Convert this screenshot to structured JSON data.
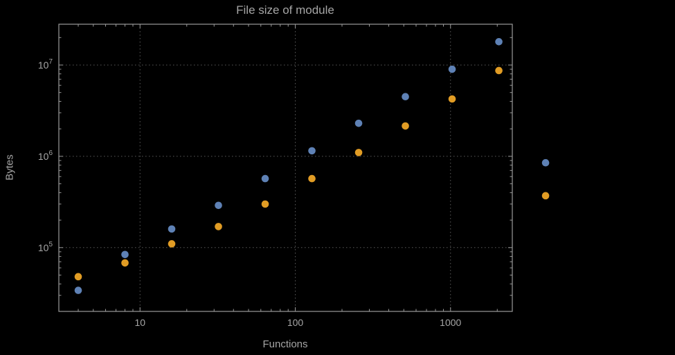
{
  "chart_data": {
    "type": "scatter",
    "title": "File size of module",
    "xlabel": "Functions",
    "ylabel": "Bytes",
    "x_scale": "log",
    "y_scale": "log",
    "xlim": [
      3,
      2500
    ],
    "ylim": [
      20000,
      28000000
    ],
    "grid": {
      "on": true,
      "style": "dotted",
      "color": "#5c5c5c"
    },
    "frame_color": "#9b9b9b",
    "text_color": "#a6a6a6",
    "background": "#000000",
    "legend": "none",
    "x_ticks": [
      {
        "label": "10",
        "value": 10
      },
      {
        "label": "100",
        "value": 100
      },
      {
        "label": "1000",
        "value": 1000
      }
    ],
    "y_ticks": [
      {
        "base": "10",
        "exp": "5",
        "value": 100000
      },
      {
        "base": "10",
        "exp": "6",
        "value": 1000000
      },
      {
        "base": "10",
        "exp": "7",
        "value": 10000000
      }
    ],
    "series": [
      {
        "name": "blue",
        "color": "#5e81b5",
        "x": [
          4,
          8,
          16,
          32,
          64,
          128,
          256,
          512,
          1024,
          2048,
          4096
        ],
        "y": [
          34000,
          84000,
          160000,
          290000,
          570000,
          1150000,
          2300000,
          4500000,
          9000000,
          18000000,
          850000
        ]
      },
      {
        "name": "orange",
        "color": "#e19c24",
        "x": [
          4,
          8,
          16,
          32,
          64,
          128,
          256,
          512,
          1024,
          2048,
          4096
        ],
        "y": [
          48000,
          68000,
          110000,
          170000,
          300000,
          570000,
          1100000,
          2150000,
          4250000,
          8700000,
          370000
        ]
      }
    ]
  }
}
